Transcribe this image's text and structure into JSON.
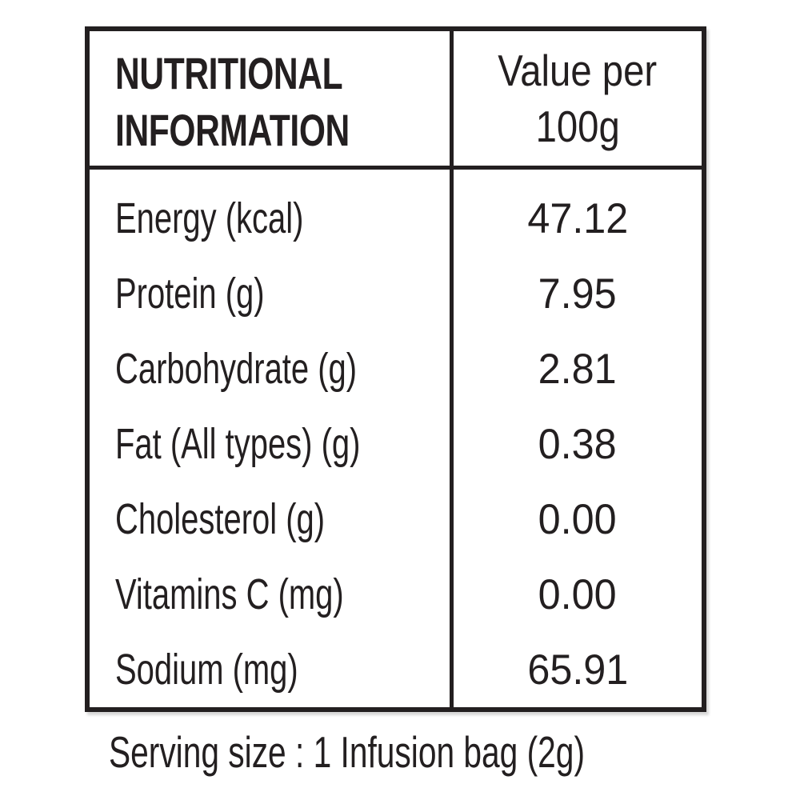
{
  "colors": {
    "text": "#231f20",
    "border": "#231f20",
    "background": "#ffffff"
  },
  "table": {
    "header": {
      "title": "NUTRITIONAL INFORMATION",
      "title_lines": [
        "NUTRITIONAL",
        "INFORMATION"
      ],
      "value_header": "Value per 100g",
      "value_header_lines": [
        "Value per",
        "100g"
      ]
    },
    "rows": [
      {
        "label": "Energy (kcal)",
        "value": "47.12"
      },
      {
        "label": "Protein (g)",
        "value": "7.95"
      },
      {
        "label": "Carbohydrate (g)",
        "value": "2.81"
      },
      {
        "label": "Fat (All types) (g)",
        "value": "0.38"
      },
      {
        "label": "Cholesterol (g)",
        "value": "0.00"
      },
      {
        "label": "Vitamins C (mg)",
        "value": "0.00"
      },
      {
        "label": "Sodium (mg)",
        "value": "65.91"
      }
    ]
  },
  "footer": {
    "serving_size": "Serving size : 1 Infusion bag (2g)"
  }
}
